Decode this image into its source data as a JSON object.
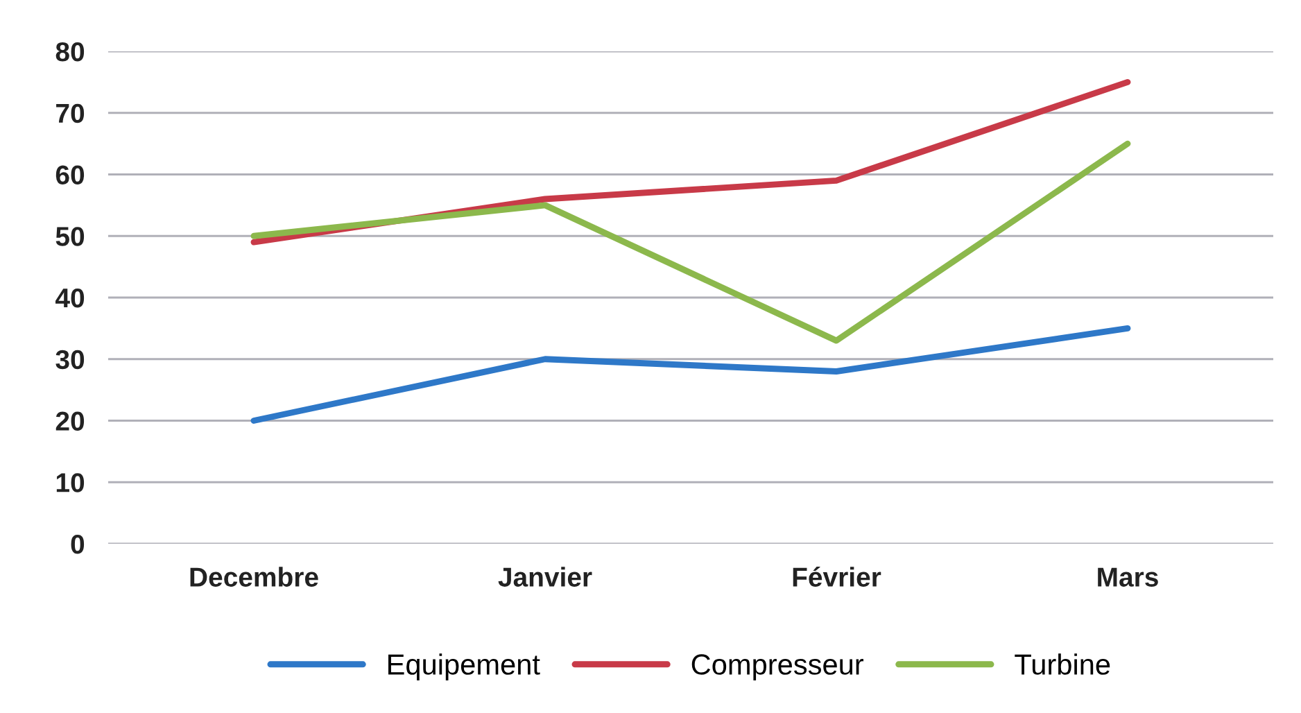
{
  "chart_data": {
    "type": "line",
    "categories": [
      "Decembre",
      "Janvier",
      "Février",
      "Mars"
    ],
    "series": [
      {
        "name": "Equipement",
        "color": "#2e78c8",
        "values": [
          20,
          30,
          28,
          35
        ]
      },
      {
        "name": "Compresseur",
        "color": "#c83a48",
        "values": [
          49,
          56,
          59,
          75
        ]
      },
      {
        "name": "Turbine",
        "color": "#8cb84c",
        "values": [
          50,
          55,
          33,
          65
        ]
      }
    ],
    "ylim": [
      0,
      80
    ],
    "yticks": [
      0,
      10,
      20,
      30,
      40,
      50,
      60,
      70,
      80
    ],
    "grid": "y",
    "legend": "bottom",
    "marker": "none",
    "line_style": "solid"
  }
}
